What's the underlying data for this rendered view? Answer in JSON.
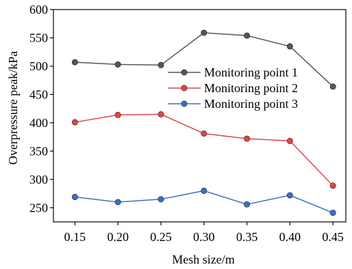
{
  "chart_data": {
    "type": "line",
    "title": "",
    "xlabel": "Mesh size/m",
    "ylabel": "Overpressure peak/kPa",
    "x": [
      "0.15",
      "0.20",
      "0.25",
      "0.30",
      "0.35",
      "0.40",
      "0.45"
    ],
    "xlim": [
      0.125,
      0.465
    ],
    "ylim": [
      225,
      600
    ],
    "yticks": [
      250,
      300,
      350,
      400,
      450,
      500,
      550,
      600
    ],
    "grid": false,
    "legend_position": "right",
    "series": [
      {
        "name": "Monitoring point 1",
        "color": "#555555",
        "values": [
          507,
          503,
          502,
          559,
          554,
          535,
          464
        ]
      },
      {
        "name": "Monitoring point 2",
        "color": "#e04545",
        "values": [
          401,
          414,
          415,
          381,
          372,
          368,
          289
        ]
      },
      {
        "name": "Monitoring point 3",
        "color": "#3a6fc4",
        "values": [
          269,
          260,
          265,
          280,
          256,
          272,
          241
        ]
      }
    ]
  }
}
